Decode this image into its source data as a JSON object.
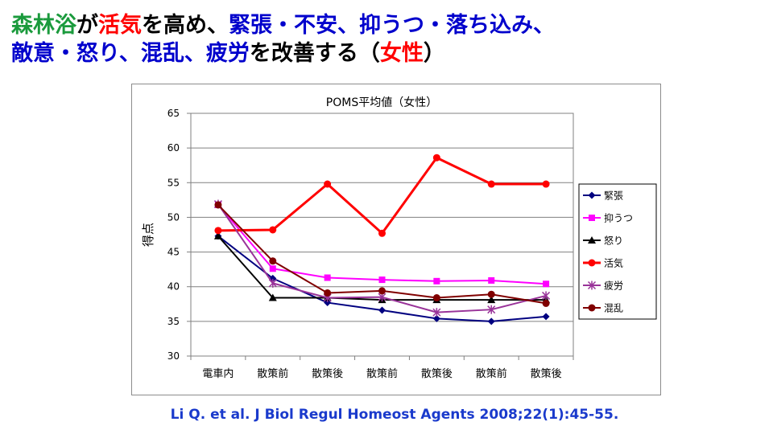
{
  "headline": {
    "line1": [
      {
        "text": "森林浴",
        "color": "#1a9a3c"
      },
      {
        "text": "が",
        "color": "#000000"
      },
      {
        "text": "活気",
        "color": "#ff0000"
      },
      {
        "text": "を高め、",
        "color": "#000000"
      },
      {
        "text": "緊張・不安、抑うつ・落ち込み、",
        "color": "#0000cc"
      }
    ],
    "line2": [
      {
        "text": "敵意・怒り、混乱、疲労",
        "color": "#0000cc"
      },
      {
        "text": "を改善する（",
        "color": "#000000"
      },
      {
        "text": "女性",
        "color": "#ff0000"
      },
      {
        "text": "）",
        "color": "#000000"
      }
    ]
  },
  "chart_data": {
    "type": "line",
    "title": "POMS平均値（女性）",
    "xlabel": "",
    "ylabel": "得点",
    "ylim": [
      30,
      65
    ],
    "yticks": [
      30,
      35,
      40,
      45,
      50,
      55,
      60,
      65
    ],
    "grid": true,
    "legend_position": "right",
    "categories": [
      "電車内",
      "散策前",
      "散策後",
      "散策前",
      "散策後",
      "散策前",
      "散策後"
    ],
    "series": [
      {
        "name": "緊張",
        "color": "#000080",
        "marker": "diamond",
        "values": [
          47.3,
          41.2,
          37.7,
          36.6,
          35.4,
          35.0,
          35.7
        ]
      },
      {
        "name": "抑うつ",
        "color": "#ff00ff",
        "marker": "square",
        "values": [
          51.8,
          42.6,
          41.3,
          41.0,
          40.8,
          40.9,
          40.4
        ]
      },
      {
        "name": "怒り",
        "color": "#000000",
        "marker": "triangle",
        "values": [
          47.3,
          38.4,
          38.4,
          38.1,
          38.1,
          38.1,
          38.1
        ]
      },
      {
        "name": "活気",
        "color": "#ff0000",
        "marker": "circle",
        "values": [
          48.1,
          48.2,
          54.8,
          47.7,
          58.6,
          54.8,
          54.8
        ]
      },
      {
        "name": "疲労",
        "color": "#993399",
        "marker": "star",
        "values": [
          51.9,
          40.5,
          38.4,
          38.5,
          36.3,
          36.7,
          38.7
        ]
      },
      {
        "name": "混乱",
        "color": "#800000",
        "marker": "circle",
        "values": [
          51.8,
          43.7,
          39.1,
          39.4,
          38.4,
          38.9,
          37.6
        ]
      }
    ]
  },
  "citation": "Li Q. et al. J Biol Regul Homeost Agents 2008;22(1):45-55."
}
